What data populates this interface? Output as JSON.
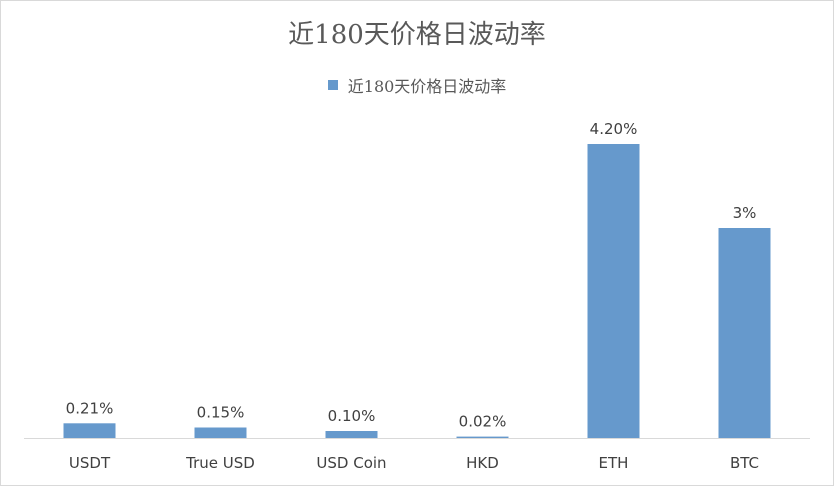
{
  "chart_data": {
    "type": "bar",
    "title": "近180天价格日波动率",
    "legend": {
      "entries": [
        "近180天价格日波动率"
      ],
      "placement": "top"
    },
    "categories": [
      "USDT",
      "True USD",
      "USD Coin",
      "HKD",
      "ETH",
      "BTC"
    ],
    "series": [
      {
        "name": "近180天价格日波动率",
        "values": [
          0.21,
          0.15,
          0.1,
          0.02,
          4.2,
          3.0
        ],
        "labels": [
          "0.21%",
          "0.15%",
          "0.10%",
          "0.02%",
          "4.20%",
          "3%"
        ]
      }
    ],
    "unit": "%",
    "ylim": [
      0,
      4.2
    ],
    "grid": false,
    "colors": {
      "bar": "#6699cc"
    }
  }
}
